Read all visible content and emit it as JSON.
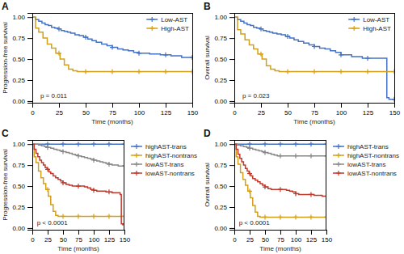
{
  "chart_data": [
    {
      "type": "step",
      "title": "A",
      "xlabel": "Time (months)",
      "ylabel": "Progression-free survival",
      "annotations": [
        "p = 0.011"
      ],
      "xlim": [
        0,
        150
      ],
      "ylim": [
        -0.02,
        1.05
      ],
      "xticks": [
        0,
        25,
        50,
        75,
        100,
        125,
        150
      ],
      "yticks": [
        {
          "value": 0.0,
          "label": "0.00"
        },
        {
          "value": 0.25,
          "label": "0.25"
        },
        {
          "value": 0.5,
          "label": "0.50"
        },
        {
          "value": 0.75,
          "label": "0.75"
        },
        {
          "value": 1.0,
          "label": "1.00"
        }
      ],
      "legend": "upper right",
      "marker": "plus",
      "grid": false,
      "series": [
        {
          "name": "Low-AST",
          "color": "#4472C4",
          "x": [
            0,
            3,
            6,
            9,
            12,
            15,
            18,
            21,
            24,
            27,
            30,
            33,
            36,
            40,
            44,
            48,
            52,
            56,
            60,
            65,
            70,
            75,
            80,
            85,
            90,
            95,
            100,
            110,
            120,
            130,
            140,
            145,
            150
          ],
          "values": [
            1.0,
            0.97,
            0.95,
            0.93,
            0.91,
            0.9,
            0.88,
            0.87,
            0.86,
            0.84,
            0.83,
            0.82,
            0.81,
            0.79,
            0.78,
            0.76,
            0.74,
            0.72,
            0.7,
            0.68,
            0.66,
            0.64,
            0.62,
            0.61,
            0.6,
            0.58,
            0.57,
            0.56,
            0.55,
            0.54,
            0.52,
            0.52,
            0.52
          ],
          "censor_x": [
            25,
            50,
            75,
            100,
            125,
            150
          ],
          "censor_y": [
            0.86,
            0.76,
            0.64,
            0.57,
            0.55,
            0.52
          ]
        },
        {
          "name": "High-AST",
          "color": "#D4A017",
          "x": [
            0,
            3,
            6,
            10,
            14,
            18,
            22,
            26,
            30,
            34,
            38,
            42,
            46,
            50,
            150
          ],
          "values": [
            1.0,
            0.87,
            0.82,
            0.75,
            0.68,
            0.63,
            0.57,
            0.5,
            0.43,
            0.38,
            0.36,
            0.35,
            0.35,
            0.35,
            0.35
          ],
          "censor_x": [
            25,
            50,
            75,
            100,
            125,
            150
          ],
          "censor_y": [
            0.57,
            0.35,
            0.35,
            0.35,
            0.35,
            0.35
          ]
        }
      ]
    },
    {
      "type": "step",
      "title": "B",
      "xlabel": "Time (months)",
      "ylabel": "Overall survival",
      "annotations": [
        "p = 0.023"
      ],
      "xlim": [
        0,
        150
      ],
      "ylim": [
        -0.02,
        1.05
      ],
      "xticks": [
        0,
        25,
        50,
        75,
        100,
        125,
        150
      ],
      "yticks": [
        {
          "value": 0.0,
          "label": "0.00"
        },
        {
          "value": 0.25,
          "label": "0.25"
        },
        {
          "value": 0.5,
          "label": "0.50"
        },
        {
          "value": 0.75,
          "label": "0.75"
        },
        {
          "value": 1.0,
          "label": "1.00"
        }
      ],
      "legend": "upper right",
      "marker": "plus",
      "grid": false,
      "series": [
        {
          "name": "Low-AST",
          "color": "#4472C4",
          "x": [
            0,
            3,
            6,
            9,
            12,
            15,
            18,
            21,
            24,
            27,
            30,
            33,
            36,
            40,
            44,
            48,
            52,
            56,
            60,
            65,
            70,
            75,
            80,
            85,
            90,
            95,
            100,
            110,
            120,
            130,
            140,
            143,
            145,
            150
          ],
          "values": [
            1.0,
            0.97,
            0.95,
            0.93,
            0.91,
            0.9,
            0.88,
            0.87,
            0.86,
            0.84,
            0.83,
            0.82,
            0.81,
            0.8,
            0.79,
            0.77,
            0.75,
            0.73,
            0.71,
            0.69,
            0.67,
            0.65,
            0.63,
            0.62,
            0.6,
            0.58,
            0.55,
            0.53,
            0.51,
            0.51,
            0.51,
            0.04,
            0.02,
            0.02
          ],
          "censor_x": [
            25,
            50,
            75,
            100,
            125,
            150
          ],
          "censor_y": [
            0.86,
            0.77,
            0.65,
            0.55,
            0.51,
            0.02
          ]
        },
        {
          "name": "High-AST",
          "color": "#D4A017",
          "x": [
            0,
            3,
            6,
            10,
            14,
            18,
            22,
            26,
            30,
            34,
            38,
            42,
            46,
            50,
            150
          ],
          "values": [
            1.0,
            0.85,
            0.8,
            0.73,
            0.67,
            0.62,
            0.56,
            0.5,
            0.42,
            0.38,
            0.36,
            0.35,
            0.35,
            0.35,
            0.35
          ],
          "censor_x": [
            25,
            50,
            75,
            100,
            125,
            150
          ],
          "censor_y": [
            0.56,
            0.35,
            0.35,
            0.35,
            0.35,
            0.35
          ]
        }
      ]
    },
    {
      "type": "step",
      "title": "C",
      "xlabel": "Time (months)",
      "ylabel": "Progression-free survival",
      "annotations": [
        "p < 0.0001"
      ],
      "xlim": [
        0,
        150
      ],
      "ylim": [
        -0.02,
        1.05
      ],
      "xticks": [
        0,
        25,
        50,
        75,
        100,
        125,
        150
      ],
      "yticks": [
        {
          "value": 0.0,
          "label": "0.00"
        },
        {
          "value": 0.25,
          "label": "0.25"
        },
        {
          "value": 0.5,
          "label": "0.50"
        },
        {
          "value": 0.75,
          "label": "0.75"
        },
        {
          "value": 1.0,
          "label": "1.00"
        }
      ],
      "legend": "right",
      "marker": "plus",
      "grid": false,
      "series": [
        {
          "name": "highAST-trans",
          "color": "#4472C4",
          "x": [
            0,
            10,
            20,
            30,
            40,
            50,
            60,
            70,
            80,
            90,
            100,
            110,
            120,
            130,
            140,
            150
          ],
          "values": [
            1.0,
            1.0,
            1.0,
            1.0,
            1.0,
            1.0,
            1.0,
            1.0,
            1.0,
            1.0,
            1.0,
            1.0,
            1.0,
            1.0,
            1.0,
            1.0
          ],
          "censor_x": [
            25,
            50,
            75,
            100,
            125,
            150
          ],
          "censor_y": [
            1.0,
            1.0,
            1.0,
            1.0,
            1.0,
            1.0
          ]
        },
        {
          "name": "highAST-nontrans",
          "color": "#D4A017",
          "x": [
            0,
            3,
            6,
            10,
            14,
            18,
            22,
            26,
            30,
            34,
            38,
            42,
            46,
            50,
            150
          ],
          "values": [
            1.0,
            0.85,
            0.78,
            0.68,
            0.6,
            0.53,
            0.46,
            0.38,
            0.28,
            0.2,
            0.15,
            0.14,
            0.14,
            0.14,
            0.14
          ],
          "censor_x": [
            25,
            50,
            75,
            100,
            125,
            150
          ],
          "censor_y": [
            0.46,
            0.14,
            0.14,
            0.14,
            0.14,
            0.14
          ]
        },
        {
          "name": "lowAST-trans",
          "color": "#888888",
          "x": [
            0,
            5,
            10,
            15,
            20,
            25,
            30,
            35,
            40,
            45,
            50,
            55,
            60,
            65,
            70,
            75,
            80,
            85,
            90,
            95,
            100,
            105,
            110,
            115,
            120,
            125,
            130,
            140,
            150
          ],
          "values": [
            1.0,
            1.0,
            0.99,
            0.98,
            0.97,
            0.96,
            0.95,
            0.94,
            0.93,
            0.92,
            0.91,
            0.9,
            0.89,
            0.88,
            0.87,
            0.86,
            0.85,
            0.84,
            0.83,
            0.82,
            0.81,
            0.8,
            0.79,
            0.78,
            0.77,
            0.76,
            0.75,
            0.74,
            0.74
          ],
          "censor_x": [
            25,
            50,
            75,
            100,
            125,
            150
          ],
          "censor_y": [
            0.96,
            0.91,
            0.86,
            0.81,
            0.76,
            0.74
          ]
        },
        {
          "name": "lowAST-nontrans",
          "color": "#C0392B",
          "x": [
            0,
            3,
            6,
            9,
            12,
            15,
            18,
            21,
            24,
            27,
            30,
            34,
            38,
            42,
            46,
            50,
            55,
            60,
            65,
            70,
            75,
            80,
            85,
            90,
            95,
            100,
            105,
            110,
            120,
            130,
            140,
            143,
            145,
            150
          ],
          "values": [
            1.0,
            0.94,
            0.89,
            0.85,
            0.81,
            0.78,
            0.75,
            0.72,
            0.7,
            0.67,
            0.65,
            0.62,
            0.6,
            0.58,
            0.56,
            0.54,
            0.52,
            0.51,
            0.5,
            0.5,
            0.5,
            0.5,
            0.49,
            0.48,
            0.46,
            0.45,
            0.44,
            0.44,
            0.43,
            0.42,
            0.42,
            0.4,
            0.05,
            0.04
          ],
          "censor_x": [
            25,
            50,
            75,
            100,
            125,
            150
          ],
          "censor_y": [
            0.7,
            0.54,
            0.5,
            0.45,
            0.43,
            0.04
          ]
        }
      ]
    },
    {
      "type": "step",
      "title": "D",
      "xlabel": "Time (months)",
      "ylabel": "Overall survival",
      "annotations": [
        "p < 0.0001"
      ],
      "xlim": [
        0,
        150
      ],
      "ylim": [
        -0.02,
        1.05
      ],
      "xticks": [
        0,
        25,
        50,
        75,
        100,
        125,
        150
      ],
      "yticks": [
        {
          "value": 0.0,
          "label": "0.00"
        },
        {
          "value": 0.25,
          "label": "0.25"
        },
        {
          "value": 0.5,
          "label": "0.50"
        },
        {
          "value": 0.75,
          "label": "0.75"
        },
        {
          "value": 1.0,
          "label": "1.00"
        }
      ],
      "legend": "right",
      "marker": "plus",
      "grid": false,
      "series": [
        {
          "name": "highAST-trans",
          "color": "#4472C4",
          "x": [
            0,
            5,
            10,
            15,
            20,
            25,
            30,
            35,
            40,
            45,
            50,
            55,
            60,
            65,
            70,
            75,
            80,
            85,
            90,
            95,
            100,
            110,
            120,
            130,
            140,
            150
          ],
          "values": [
            1.0,
            1.0,
            1.0,
            1.0,
            1.0,
            1.0,
            1.0,
            1.0,
            1.0,
            1.0,
            1.0,
            1.0,
            1.0,
            1.0,
            1.0,
            1.0,
            1.0,
            1.0,
            1.0,
            1.0,
            1.0,
            1.0,
            1.0,
            1.0,
            1.0,
            1.0
          ],
          "censor_x": [
            25,
            50,
            75,
            100,
            125,
            150
          ],
          "censor_y": [
            1.0,
            1.0,
            1.0,
            1.0,
            1.0,
            1.0
          ]
        },
        {
          "name": "highAST-nontrans",
          "color": "#D4A017",
          "x": [
            0,
            3,
            6,
            10,
            14,
            18,
            22,
            26,
            30,
            34,
            38,
            42,
            46,
            50,
            150
          ],
          "values": [
            1.0,
            0.85,
            0.76,
            0.66,
            0.58,
            0.51,
            0.44,
            0.36,
            0.27,
            0.19,
            0.14,
            0.13,
            0.13,
            0.13,
            0.13
          ],
          "censor_x": [
            25,
            50,
            75,
            100,
            125,
            150
          ],
          "censor_y": [
            0.44,
            0.13,
            0.13,
            0.13,
            0.13,
            0.13
          ]
        },
        {
          "name": "lowAST-trans",
          "color": "#888888",
          "x": [
            0,
            2,
            5,
            10,
            15,
            20,
            25,
            30,
            35,
            40,
            45,
            50,
            55,
            60,
            65,
            70,
            75,
            80,
            85,
            90,
            95,
            100,
            105,
            110,
            115,
            120,
            125,
            130,
            135,
            140,
            145,
            150
          ],
          "values": [
            1.0,
            1.0,
            0.99,
            0.98,
            0.97,
            0.96,
            0.95,
            0.94,
            0.93,
            0.92,
            0.91,
            0.9,
            0.89,
            0.88,
            0.87,
            0.86,
            0.86,
            0.86,
            0.86,
            0.86,
            0.86,
            0.86,
            0.86,
            0.86,
            0.86,
            0.86,
            0.86,
            0.86,
            0.86,
            0.86,
            0.86,
            0.86
          ],
          "censor_x": [
            25,
            50,
            75,
            100,
            125,
            150
          ],
          "censor_y": [
            0.95,
            0.9,
            0.86,
            0.86,
            0.86,
            0.86
          ]
        },
        {
          "name": "lowAST-nontrans",
          "color": "#C0392B",
          "x": [
            0,
            3,
            6,
            9,
            12,
            15,
            18,
            21,
            24,
            27,
            30,
            34,
            38,
            42,
            46,
            50,
            55,
            60,
            65,
            70,
            75,
            80,
            85,
            90,
            95,
            100,
            105,
            110,
            120,
            130,
            140,
            143,
            145,
            150
          ],
          "values": [
            1.0,
            0.94,
            0.88,
            0.83,
            0.79,
            0.75,
            0.71,
            0.68,
            0.65,
            0.62,
            0.59,
            0.57,
            0.55,
            0.53,
            0.51,
            0.49,
            0.47,
            0.46,
            0.46,
            0.46,
            0.46,
            0.46,
            0.45,
            0.44,
            0.43,
            0.41,
            0.4,
            0.4,
            0.4,
            0.39,
            0.39,
            0.38,
            0.38,
            0.38
          ],
          "censor_x": [
            25,
            50,
            75,
            100,
            125,
            150
          ],
          "censor_y": [
            0.65,
            0.49,
            0.46,
            0.41,
            0.4,
            0.38
          ]
        }
      ]
    }
  ]
}
